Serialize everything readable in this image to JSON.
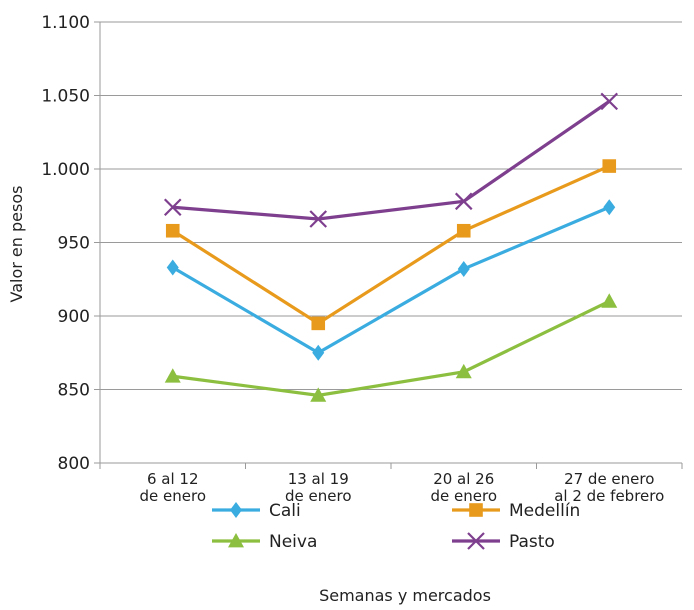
{
  "chart_data": {
    "type": "line",
    "title": "",
    "ylabel": "Valor en pesos",
    "xlabel": "Semanas y mercados",
    "ylim": [
      800,
      1100
    ],
    "yticks": [
      "800",
      "850",
      "900",
      "950",
      "1.000",
      "1.050",
      "1.100"
    ],
    "ytick_values": [
      800,
      850,
      900,
      950,
      1000,
      1050,
      1100
    ],
    "categories": [
      [
        "6 al 12",
        "de enero"
      ],
      [
        "13 al 19",
        "de enero"
      ],
      [
        "20 al 26",
        "de enero"
      ],
      [
        "27 de enero",
        "al 2 de febrero"
      ]
    ],
    "grid": "horizontal",
    "legend": "bottom",
    "series": [
      {
        "name": "Cali",
        "values": [
          933,
          875,
          932,
          974
        ],
        "color": "#3aace0",
        "marker": "diamond-icon"
      },
      {
        "name": "Medellín",
        "values": [
          958,
          895,
          958,
          1002
        ],
        "color": "#e89a1c",
        "marker": "square-icon"
      },
      {
        "name": "Neiva",
        "values": [
          859,
          846,
          862,
          910
        ],
        "color": "#8cbf3f",
        "marker": "triangle-icon"
      },
      {
        "name": "Pasto",
        "values": [
          974,
          966,
          978,
          1046
        ],
        "color": "#7e3f8e",
        "marker": "x-icon"
      }
    ]
  }
}
